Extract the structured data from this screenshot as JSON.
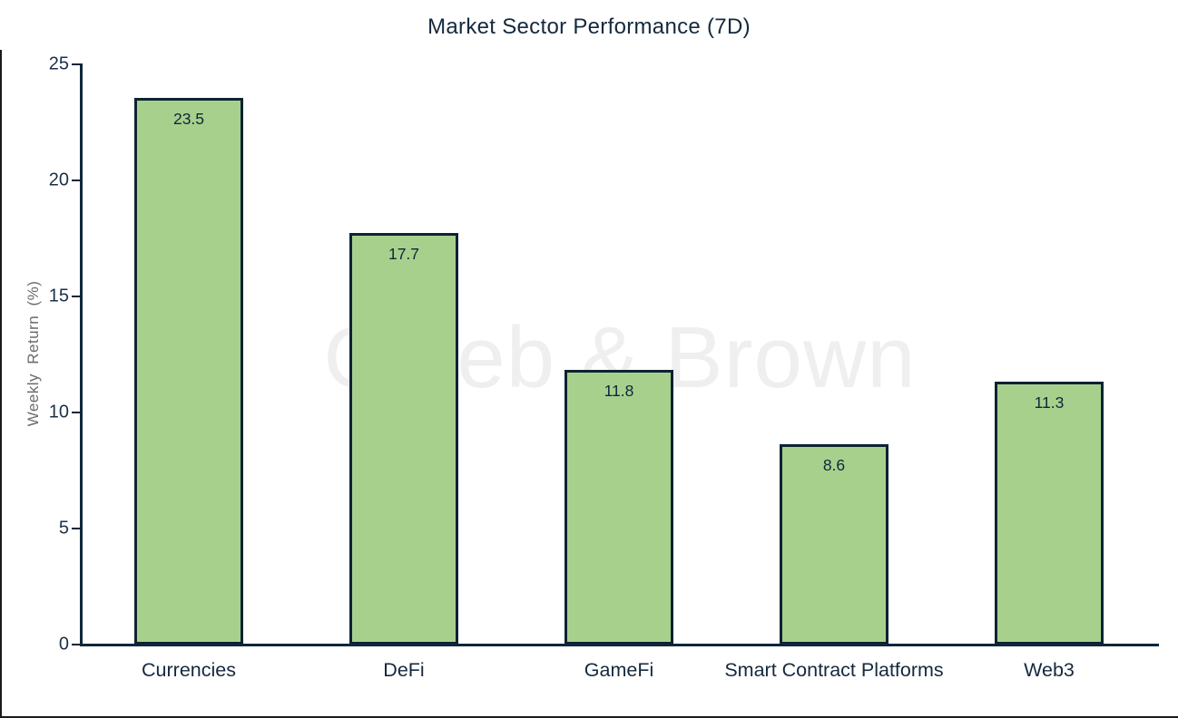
{
  "watermark": "Caleb & Brown",
  "colors": {
    "bar_fill": "#a7d08d",
    "bar_border": "#0e2233",
    "axis": "#10263a",
    "title_text": "#15293e",
    "tick_text": "#1c3048",
    "axis_label_text": "#6b6b6b",
    "watermark_text": "#efefef",
    "background": "#ffffff"
  },
  "chart_data": {
    "type": "bar",
    "title": "Market Sector Performance (7D)",
    "categories": [
      "Currencies",
      "DeFi",
      "GameFi",
      "Smart Contract Platforms",
      "Web3"
    ],
    "values": [
      23.5,
      17.7,
      11.8,
      8.6,
      11.3
    ],
    "bar_labels": [
      "23.5",
      "17.7",
      "11.8",
      "8.6",
      "11.3"
    ],
    "xlabel": "",
    "ylabel": "Weekly Return (%)",
    "ylim": [
      0,
      25
    ],
    "yticks": [
      0,
      5,
      10,
      15,
      20,
      25
    ],
    "grid": false,
    "legend": null
  }
}
